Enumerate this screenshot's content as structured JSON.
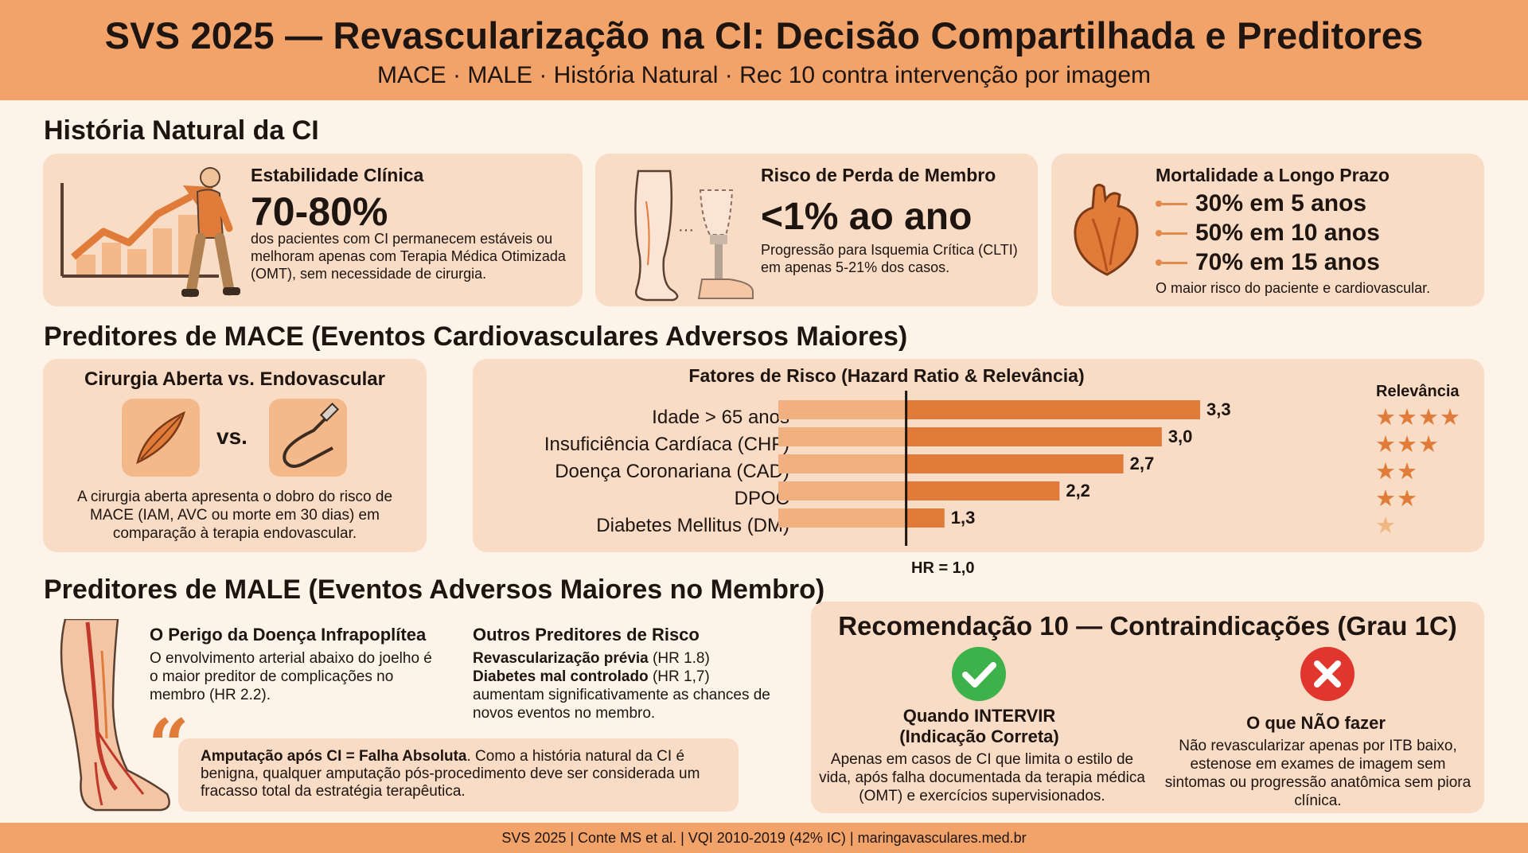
{
  "header": {
    "title": "SVS 2025 — Revascularização na CI: Decisão Compartilhada e Preditores",
    "subtitle": "MACE · MALE · História Natural · Rec 10 contra intervenção por imagem"
  },
  "natural_history": {
    "title": "História Natural da CI",
    "stability": {
      "title": "Estabilidade Clínica",
      "value": "70-80%",
      "desc": "dos pacientes com CI permanecem estáveis ou melhoram apenas com Terapia Médica Otimizada (OMT), sem necessidade de cirurgia."
    },
    "limb_loss": {
      "title": "Risco de Perda de Membro",
      "value": "<1% ao ano",
      "desc": "Progressão para Isquemia Crítica (CLTI) em apenas 5-21% dos casos."
    },
    "mortality": {
      "title": "Mortalidade a Longo Prazo",
      "items": [
        "30% em 5 anos",
        "50% em 10 anos",
        "70% em 15 anos"
      ],
      "foot": "O maior risco do paciente e cardiovascular."
    }
  },
  "mace": {
    "title": "Preditores de MACE (Eventos Cardiovasculares Adversos Maiores)",
    "surgery": {
      "title": "Cirurgia Aberta vs. Endovascular",
      "vs": "vs.",
      "desc": "A cirurgia aberta apresenta o dobro do risco de MACE (IAM, AVC ou morte em 30 dias) em comparação à terapia endovascular."
    },
    "chart_title": "Fatores de Risco (Hazard Ratio & Relevância)",
    "relevance_label": "Relevância",
    "reference_label": "HR = 1,0"
  },
  "chart_data": {
    "type": "bar",
    "orientation": "horizontal",
    "title": "Fatores de Risco (Hazard Ratio & Relevância)",
    "categories": [
      "Idade > 65 anos",
      "Insuficiência Cardíaca (CHF)",
      "Doença Coronariana (CAD)",
      "DPOC",
      "Diabetes Mellitus (DM)"
    ],
    "values": [
      3.3,
      3.0,
      2.7,
      2.2,
      1.3
    ],
    "value_labels": [
      "3,3",
      "3,0",
      "2,7",
      "2,2",
      "1,3"
    ],
    "relevance_stars": [
      4,
      3,
      2,
      2,
      1
    ],
    "reference_line": 1.0,
    "xlim": [
      0,
      3.3
    ],
    "colors": {
      "bar_light": "#f1b07f",
      "bar_dark": "#e07b39",
      "star": "#e07b39",
      "star_faint": "#f0b880"
    }
  },
  "male": {
    "title": "Preditores de MALE (Eventos Adversos Maiores no Membro)",
    "infrapop": {
      "title": "O Perigo da Doença Infrapoplítea",
      "desc": "O envolvimento arterial abaixo do joelho é o maior preditor de complicações no membro (HR 2.2)."
    },
    "others": {
      "title": "Outros Preditores de Risco",
      "item1_bold": "Revascularização prévia",
      "item1_rest": " (HR 1.8)",
      "item2_bold": "Diabetes mal controlado",
      "item2_rest": " (HR 1,7)",
      "desc": "aumentam significativamente as chances de novos eventos no membro."
    },
    "quote_bold": "Amputação após CI = Falha Absoluta",
    "quote_rest": ". Como a história natural da CI é benigna, qualquer amputação pós-procedimento deve ser considerada um fracasso total da estratégia terapêutica."
  },
  "rec10": {
    "title": "Recomendação 10 — Contraindicações (Grau 1C)",
    "do": {
      "title_line1": "Quando INTERVIR",
      "title_line2": "(Indicação Correta)",
      "desc": "Apenas em casos de CI que limita o estilo de vida, após falha documentada da terapia médica (OMT) e exercícios supervisionados."
    },
    "dont": {
      "title": "O que NÃO fazer",
      "desc": "Não revascularizar apenas por ITB baixo, estenose em exames de imagem sem sintomas ou progressão anatômica sem piora clínica."
    },
    "colors": {
      "check": "#3db14a",
      "cross": "#e1362e"
    }
  },
  "footer": {
    "text": "SVS 2025 | Conte MS et al. | VQI 2010-2019 (42% IC) | maringavasculares.med.br"
  },
  "icons": [
    "trend-chart-icon",
    "walking-man-icon",
    "leg-icon",
    "prosthesis-icon",
    "heart-icon",
    "scalpel-incision-icon",
    "catheter-icon",
    "leg-arteries-icon",
    "quote-icon",
    "check-icon",
    "cross-icon"
  ]
}
